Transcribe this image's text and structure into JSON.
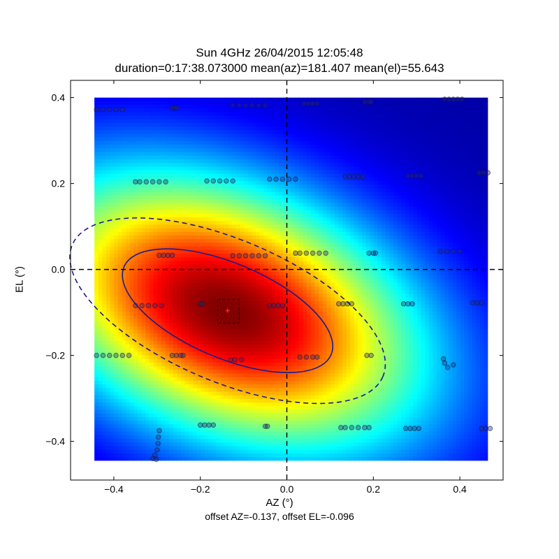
{
  "chart_data": {
    "type": "heatmap",
    "title": "Sun 4GHz 26/04/2015 12:05:48",
    "subtitle": "duration=0:17:38.073000 mean(az)=181.407 mean(el)=55.643",
    "xlabel": "AZ (°)",
    "ylabel": "EL (°)",
    "footnote": "offset AZ=-0.137, offset EL=-0.096",
    "xlim": [
      -0.5,
      0.5
    ],
    "ylim": [
      -0.49,
      0.44
    ],
    "xticks": [
      -0.4,
      -0.2,
      0.0,
      0.2,
      0.4
    ],
    "yticks": [
      -0.4,
      -0.2,
      0.0,
      0.2,
      0.4
    ],
    "xtick_labels": [
      "−0.4",
      "−0.2",
      "0.0",
      "0.2",
      "0.4"
    ],
    "ytick_labels": [
      "−0.4",
      "−0.2",
      "0.0",
      "0.2",
      "0.4"
    ],
    "image_extent": {
      "x": [
        -0.445,
        0.465
      ],
      "y": [
        -0.445,
        0.4
      ]
    },
    "colormap": "jet",
    "beam_model": {
      "center_az": -0.137,
      "center_el": -0.096,
      "sigma_major": 0.33,
      "sigma_minor": 0.2,
      "angle_deg": -23
    },
    "crosshair": {
      "az": 0.0,
      "el": 0.0
    },
    "peak_marker": {
      "az": -0.137,
      "el": -0.096,
      "color": "#ff2020"
    },
    "peak_box": {
      "az_range": [
        -0.16,
        -0.11
      ],
      "el_range": [
        -0.125,
        -0.07
      ]
    },
    "contours": [
      {
        "name": "half-power",
        "style": "solid",
        "center_az": -0.137,
        "center_el": -0.096,
        "semi_major": 0.26,
        "semi_minor": 0.11,
        "angle_deg": -23,
        "color": "#1a1a8c"
      },
      {
        "name": "outer",
        "style": "dashed",
        "center_az": -0.137,
        "center_el": -0.096,
        "semi_major": 0.39,
        "semi_minor": 0.165,
        "angle_deg": -23,
        "color": "#1a1a8c"
      }
    ],
    "scan_points": [
      {
        "el": 0.372,
        "az": [
          -0.44,
          -0.425,
          -0.41,
          -0.395,
          -0.38
        ]
      },
      {
        "el": 0.376,
        "az": [
          -0.265,
          -0.26,
          -0.255
        ]
      },
      {
        "el": 0.382,
        "az": [
          -0.125,
          -0.11,
          -0.095,
          -0.08,
          -0.065,
          -0.05
        ]
      },
      {
        "el": 0.386,
        "az": [
          0.04,
          0.05,
          0.06,
          0.07
        ]
      },
      {
        "el": 0.39,
        "az": [
          0.18,
          0.19,
          0.195
        ]
      },
      {
        "el": 0.396,
        "az": [
          0.365,
          0.375,
          0.385,
          0.395,
          0.405
        ]
      },
      {
        "el": 0.204,
        "az": [
          -0.35,
          -0.34,
          -0.325,
          -0.31,
          -0.295,
          -0.28
        ]
      },
      {
        "el": 0.206,
        "az": [
          -0.185,
          -0.17,
          -0.155,
          -0.14,
          -0.125
        ]
      },
      {
        "el": 0.21,
        "az": [
          -0.04,
          -0.025,
          -0.01,
          0.005,
          0.02
        ]
      },
      {
        "el": 0.216,
        "az": [
          0.135,
          0.145,
          0.155,
          0.165,
          0.175
        ]
      },
      {
        "el": 0.218,
        "az": [
          0.28,
          0.29,
          0.3,
          0.31
        ]
      },
      {
        "el": 0.225,
        "az": [
          0.445,
          0.455,
          0.465
        ]
      },
      {
        "el": 0.033,
        "az": [
          -0.295,
          -0.285,
          -0.275,
          -0.265
        ]
      },
      {
        "el": 0.032,
        "az": [
          -0.125,
          -0.11,
          -0.095,
          -0.08,
          -0.065,
          -0.05
        ]
      },
      {
        "el": 0.038,
        "az": [
          0.02,
          0.03,
          0.045,
          0.06,
          0.075,
          0.09
        ]
      },
      {
        "el": 0.038,
        "az": [
          0.19,
          0.2,
          0.205
        ]
      },
      {
        "el": 0.042,
        "az": [
          0.355,
          0.37,
          0.385,
          0.4
        ]
      },
      {
        "el": -0.084,
        "az": [
          -0.35,
          -0.335,
          -0.32,
          -0.305,
          -0.29
        ]
      },
      {
        "el": -0.08,
        "az": [
          -0.2,
          -0.195
        ]
      },
      {
        "el": -0.084,
        "az": [
          -0.04,
          -0.03,
          -0.02,
          -0.01
        ]
      },
      {
        "el": -0.08,
        "az": [
          0.12,
          0.13,
          0.14,
          0.15
        ]
      },
      {
        "el": -0.08,
        "az": [
          0.27,
          0.28,
          0.29
        ]
      },
      {
        "el": -0.078,
        "az": [
          0.43,
          0.44,
          0.45
        ]
      },
      {
        "el": -0.2,
        "az": [
          -0.44,
          -0.425,
          -0.41,
          -0.395,
          -0.38,
          -0.365
        ]
      },
      {
        "el": -0.2,
        "az": [
          -0.265,
          -0.255,
          -0.245,
          -0.24
        ]
      },
      {
        "el": -0.21,
        "az": [
          -0.13,
          -0.12,
          -0.105
        ]
      },
      {
        "el": -0.204,
        "az": [
          0.03,
          0.045,
          0.06,
          0.07
        ]
      },
      {
        "el": -0.2,
        "az": [
          0.185,
          0.195
        ]
      },
      {
        "el": -0.362,
        "az": [
          -0.2,
          -0.19,
          -0.18,
          -0.17
        ]
      },
      {
        "el": -0.365,
        "az": [
          -0.05,
          -0.045
        ]
      },
      {
        "el": -0.368,
        "az": [
          0.125,
          0.135,
          0.15,
          0.165,
          0.18,
          0.19
        ]
      },
      {
        "el": -0.37,
        "az": [
          0.275,
          0.285,
          0.295,
          0.305
        ]
      },
      {
        "el": -0.37,
        "az": [
          0.45,
          0.46,
          0.47
        ]
      }
    ],
    "scan_points_misc": [
      {
        "az": 0.362,
        "el": -0.208
      },
      {
        "az": 0.365,
        "el": -0.218
      },
      {
        "az": 0.372,
        "el": -0.228
      },
      {
        "az": 0.385,
        "el": -0.222
      },
      {
        "az": -0.295,
        "el": -0.375
      },
      {
        "az": -0.297,
        "el": -0.39
      },
      {
        "az": -0.298,
        "el": -0.405
      },
      {
        "az": -0.3,
        "el": -0.42
      },
      {
        "az": -0.305,
        "el": -0.432
      },
      {
        "az": -0.31,
        "el": -0.44
      },
      {
        "az": -0.302,
        "el": -0.442
      }
    ]
  }
}
